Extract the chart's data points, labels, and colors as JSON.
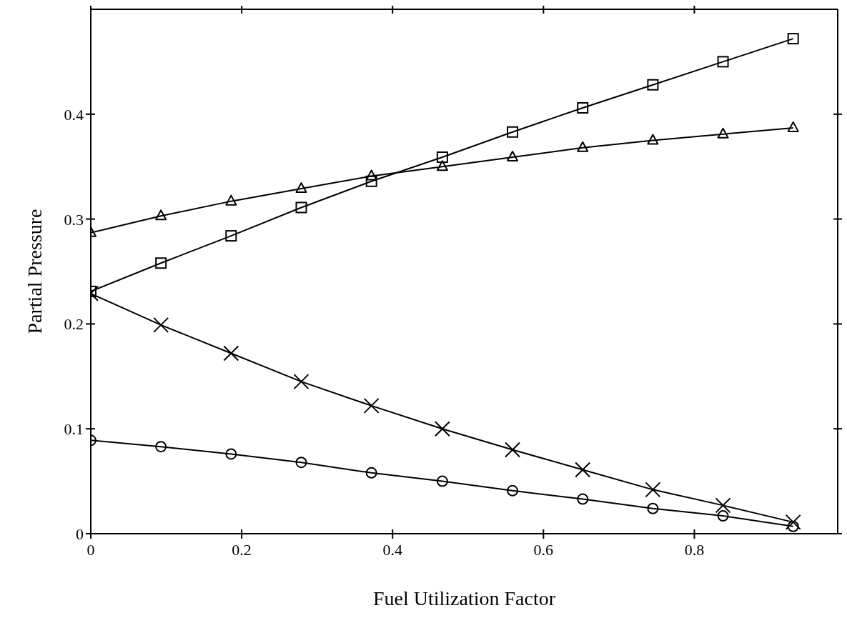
{
  "chart_data": {
    "type": "line",
    "xlabel": "Fuel Utilization Factor",
    "ylabel": "Partial Pressure",
    "x": [
      0,
      0.093,
      0.186,
      0.279,
      0.372,
      0.466,
      0.559,
      0.652,
      0.745,
      0.838,
      0.931
    ],
    "xlim": [
      0,
      0.99
    ],
    "xticks": [
      0,
      0.2,
      0.4,
      0.6,
      0.8
    ],
    "ylim": [
      0,
      0.5
    ],
    "yticks": [
      0,
      0.1,
      0.2,
      0.3,
      0.4
    ],
    "grid": false,
    "line_style": "solid",
    "series": [
      {
        "color": "#000000",
        "marker": "triangle",
        "values": [
          0.287,
          0.303,
          0.317,
          0.329,
          0.341,
          0.35,
          0.359,
          0.368,
          0.375,
          0.381,
          0.387
        ]
      },
      {
        "color": "#000000",
        "marker": "square",
        "values": [
          0.231,
          0.258,
          0.284,
          0.311,
          0.336,
          0.359,
          0.383,
          0.406,
          0.428,
          0.45,
          0.472
        ]
      },
      {
        "color": "#000000",
        "marker": "cross",
        "values": [
          0.229,
          0.199,
          0.172,
          0.145,
          0.122,
          0.1,
          0.08,
          0.061,
          0.042,
          0.027,
          0.011
        ]
      },
      {
        "color": "#000000",
        "marker": "circle",
        "values": [
          0.089,
          0.083,
          0.076,
          0.068,
          0.058,
          0.05,
          0.041,
          0.033,
          0.024,
          0.017,
          0.007
        ]
      }
    ]
  }
}
